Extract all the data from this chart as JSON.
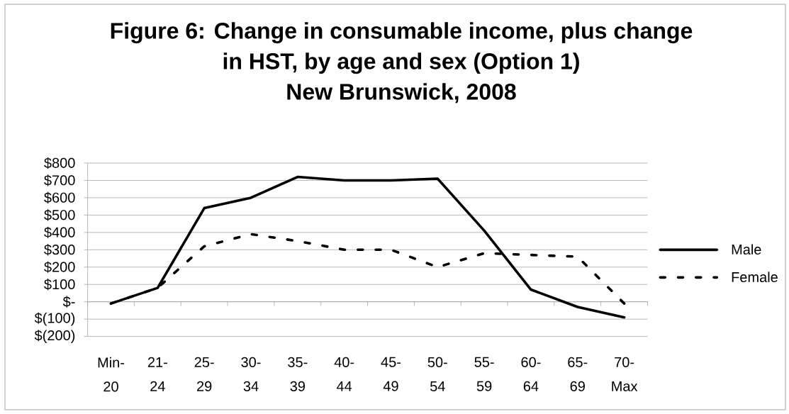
{
  "chart_data": {
    "type": "line",
    "title": "Figure 6: Change in consumable income, plus change in HST, by age and sex (Option 1)",
    "subtitle": "New Brunswick, 2008",
    "categories": [
      "Min-20",
      "21-24",
      "25-29",
      "30-34",
      "35-39",
      "40-44",
      "45-49",
      "50-54",
      "55-59",
      "60-64",
      "65-69",
      "70-Max"
    ],
    "series": [
      {
        "name": "Male",
        "color": "#000000",
        "line_style": "solid",
        "values": [
          -10,
          80,
          540,
          600,
          720,
          700,
          700,
          710,
          410,
          70,
          -30,
          -90
        ]
      },
      {
        "name": "Female",
        "color": "#000000",
        "line_style": "dashed",
        "values": [
          -10,
          80,
          320,
          390,
          350,
          300,
          300,
          200,
          280,
          270,
          260,
          -10
        ]
      }
    ],
    "ylim": [
      -200,
      800
    ],
    "yticks": [
      {
        "value": -200,
        "label": "$(200)"
      },
      {
        "value": -100,
        "label": "$(100)"
      },
      {
        "value": 0,
        "label": "$-"
      },
      {
        "value": 100,
        "label": "$100"
      },
      {
        "value": 200,
        "label": "$200"
      },
      {
        "value": 300,
        "label": "$300"
      },
      {
        "value": 400,
        "label": "$400"
      },
      {
        "value": 500,
        "label": "$500"
      },
      {
        "value": 600,
        "label": "$600"
      },
      {
        "value": 700,
        "label": "$700"
      },
      {
        "value": 800,
        "label": "$800"
      }
    ],
    "grid": "y",
    "legend": "right",
    "marker": "none"
  }
}
